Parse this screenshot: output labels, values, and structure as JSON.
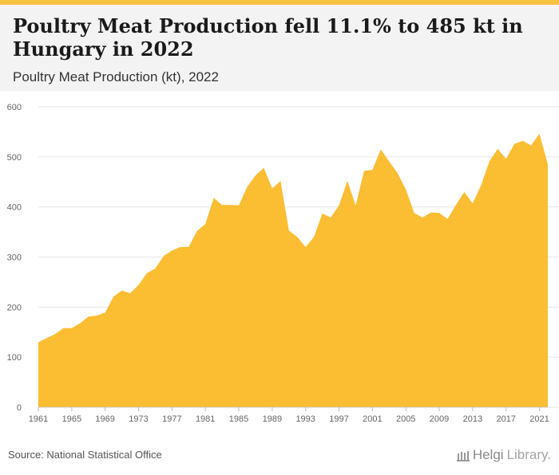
{
  "header": {
    "title": "Poultry Meat Production fell 11.1% to 485 kt in Hungary in 2022",
    "subtitle": "Poultry Meat Production (kt), 2022"
  },
  "footer": {
    "source": "Source: National Statistical Office",
    "logo_bold": "Helgi",
    "logo_light": "Library."
  },
  "colors": {
    "area": "#fbbd32",
    "grid": "#e6e6e6",
    "axis_text": "#666666",
    "accent": "#f5c242"
  },
  "chart_data": {
    "type": "area",
    "title": "",
    "xlabel": "",
    "ylabel": "",
    "ylim": [
      0,
      600
    ],
    "yticks": [
      0,
      100,
      200,
      300,
      400,
      500,
      600
    ],
    "xticks": [
      1961,
      1965,
      1969,
      1973,
      1977,
      1981,
      1985,
      1989,
      1993,
      1997,
      2001,
      2005,
      2009,
      2013,
      2017,
      2021
    ],
    "xlim": [
      1961,
      2022
    ],
    "grid": true,
    "legend": "none",
    "x": [
      1961,
      1962,
      1963,
      1964,
      1965,
      1966,
      1967,
      1968,
      1969,
      1970,
      1971,
      1972,
      1973,
      1974,
      1975,
      1976,
      1977,
      1978,
      1979,
      1980,
      1981,
      1982,
      1983,
      1984,
      1985,
      1986,
      1987,
      1988,
      1989,
      1990,
      1991,
      1992,
      1993,
      1994,
      1995,
      1996,
      1997,
      1998,
      1999,
      2000,
      2001,
      2002,
      2003,
      2004,
      2005,
      2006,
      2007,
      2008,
      2009,
      2010,
      2011,
      2012,
      2013,
      2014,
      2015,
      2016,
      2017,
      2018,
      2019,
      2020,
      2021,
      2022
    ],
    "values": [
      130,
      138,
      146,
      158,
      158,
      168,
      181,
      183,
      189,
      221,
      233,
      228,
      244,
      268,
      277,
      302,
      313,
      320,
      320,
      352,
      366,
      418,
      404,
      404,
      403,
      440,
      463,
      478,
      437,
      452,
      353,
      340,
      320,
      340,
      387,
      379,
      403,
      452,
      403,
      472,
      474,
      515,
      491,
      468,
      435,
      388,
      379,
      389,
      388,
      376,
      404,
      430,
      407,
      443,
      491,
      516,
      496,
      526,
      532,
      523,
      546,
      485
    ]
  }
}
